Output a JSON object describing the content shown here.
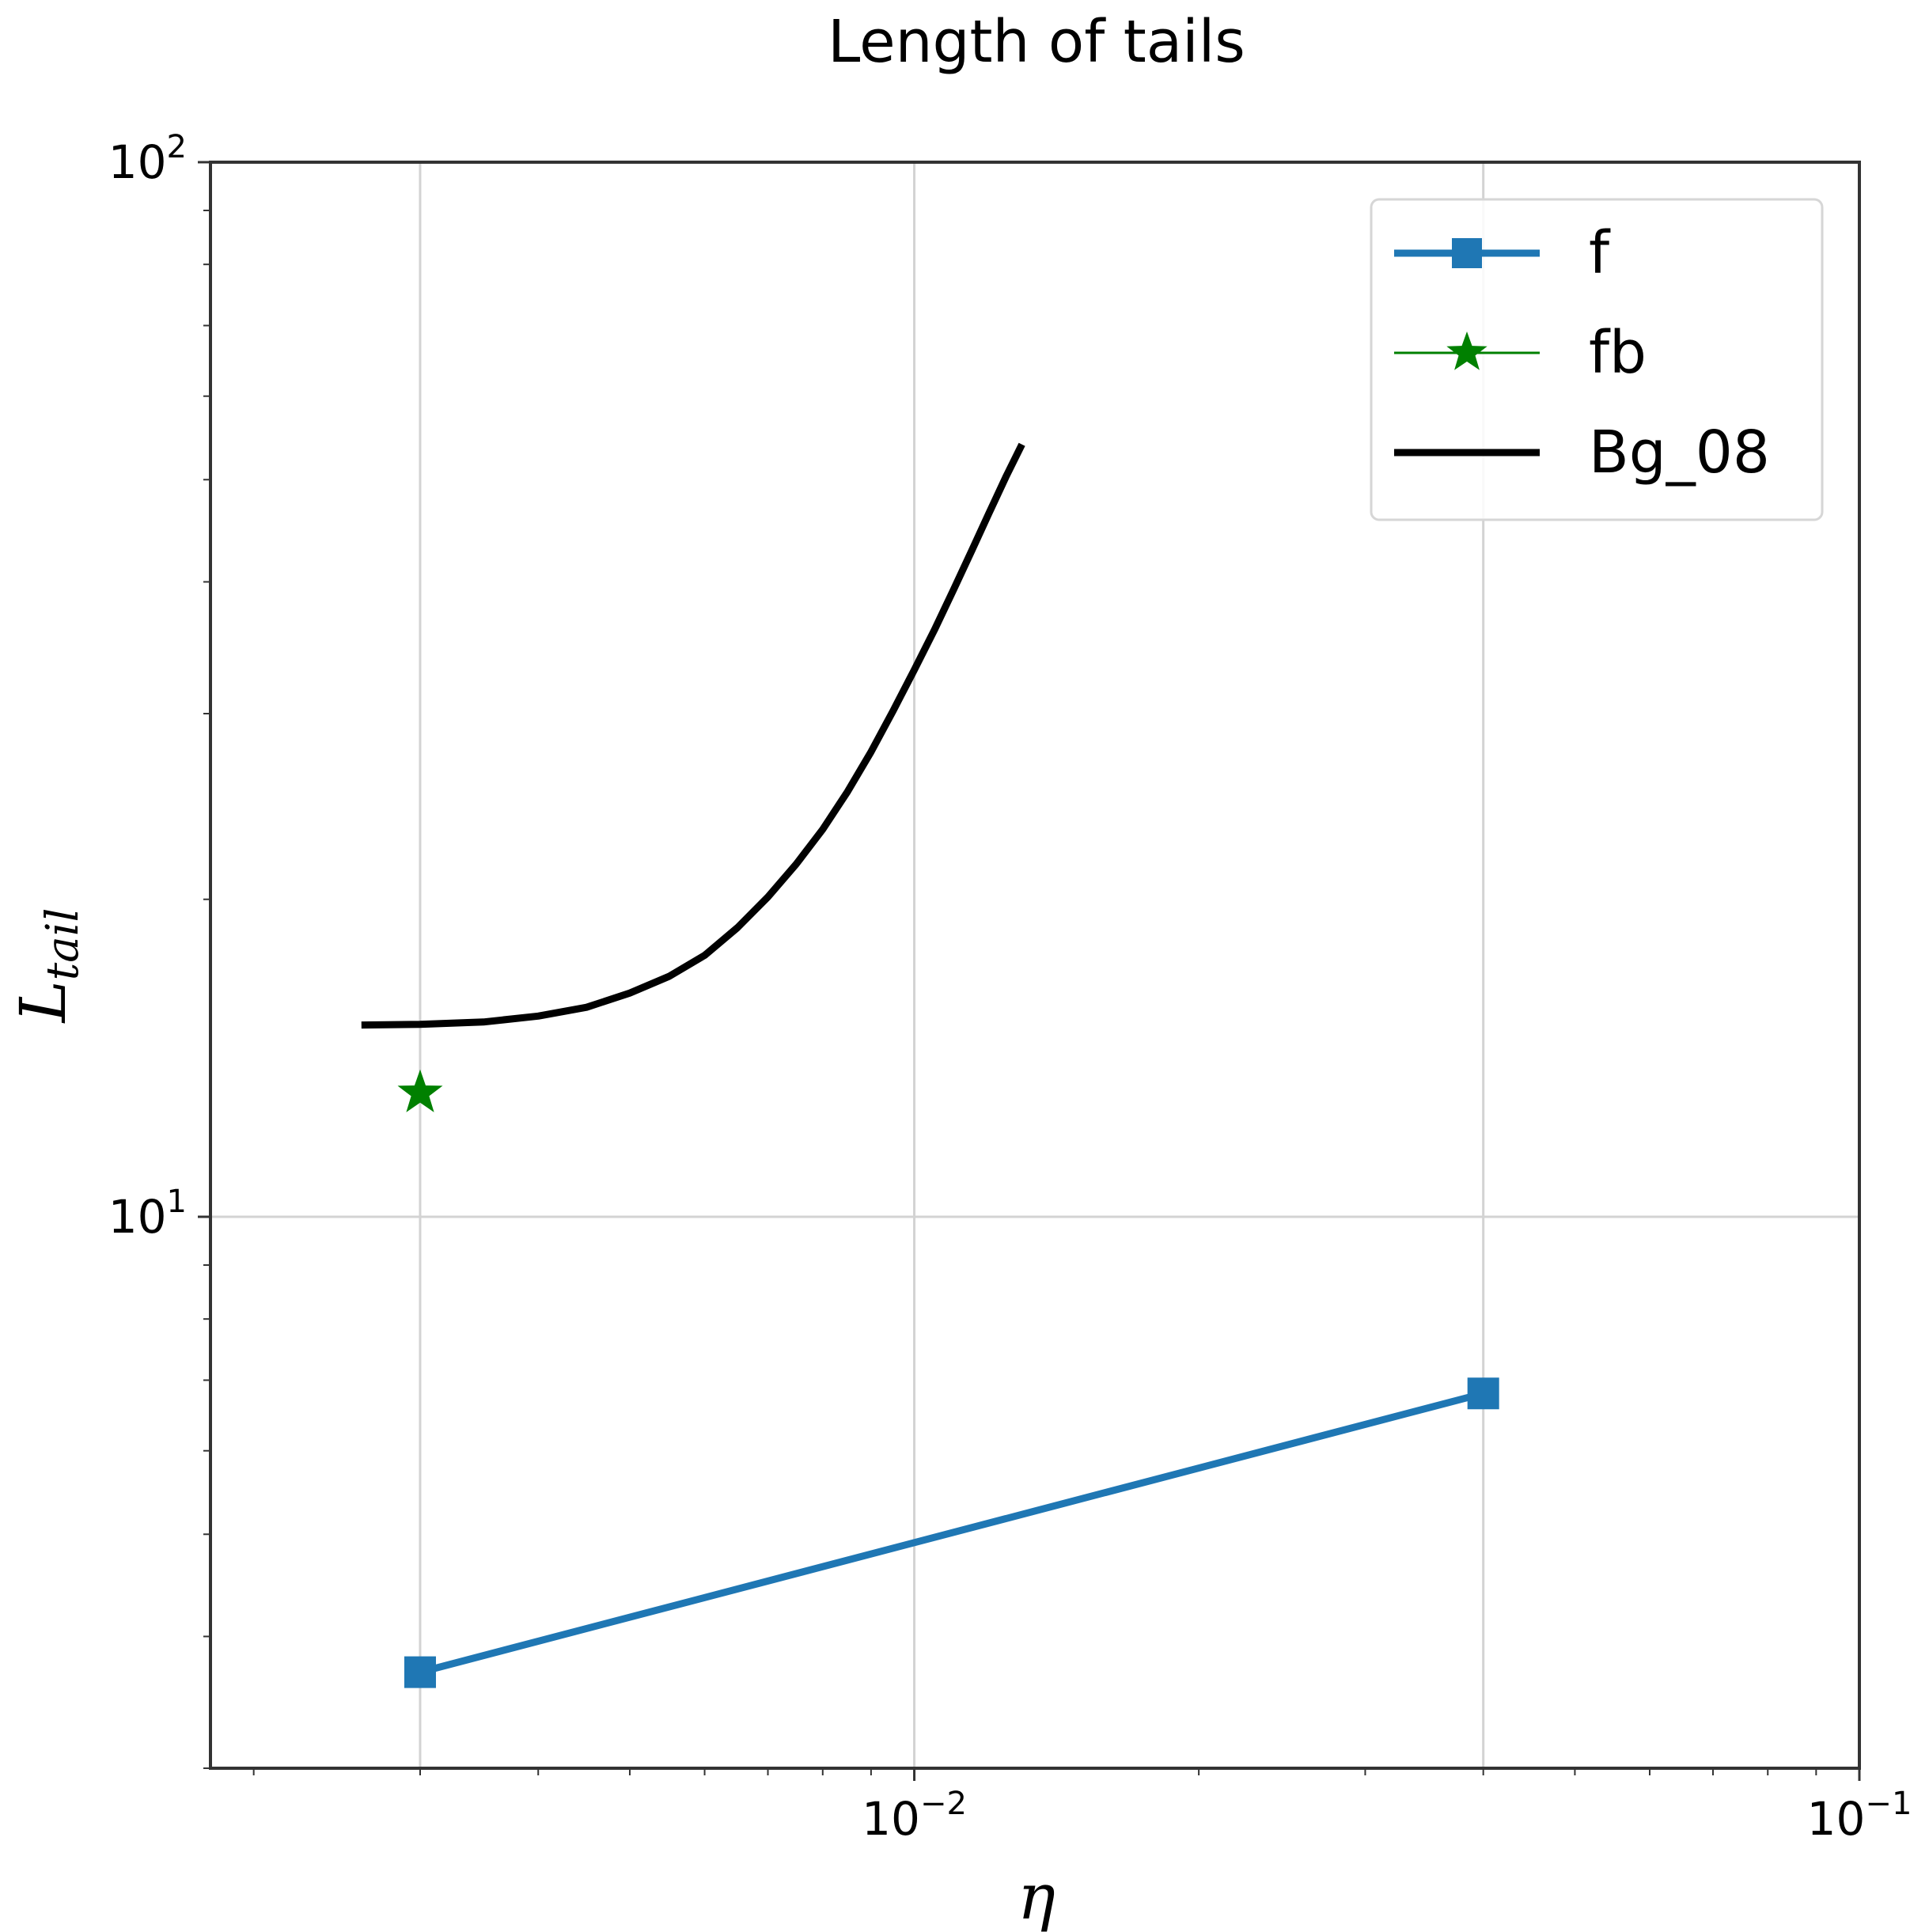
{
  "chart_data": {
    "type": "line",
    "title": "Length of tails",
    "xlabel": "η",
    "ylabel": "L",
    "ylabel_subscript": "tail",
    "xscale": "log",
    "yscale": "log",
    "xlim": [
      0.0018,
      0.1
    ],
    "ylim": [
      3.0,
      100
    ],
    "xticks": [
      {
        "value": 0.01,
        "base": "10",
        "exp": "−2"
      },
      {
        "value": 0.1,
        "base": "10",
        "exp": "−1"
      }
    ],
    "yticks": [
      {
        "value": 10,
        "base": "10",
        "exp": "1"
      },
      {
        "value": 100,
        "base": "10",
        "exp": "2"
      }
    ],
    "grid": true,
    "legend_position": "top-right",
    "series": [
      {
        "name": "f",
        "color": "#1f77b4",
        "marker": "square",
        "x": [
          0.003,
          0.04
        ],
        "y": [
          3.7,
          6.8
        ]
      },
      {
        "name": "fb",
        "color": "#008000",
        "marker": "star",
        "x": [
          0.003
        ],
        "y": [
          13.1
        ]
      },
      {
        "name": "Bg_08",
        "color": "#000000",
        "marker": "none",
        "x": [
          0.0026,
          0.003,
          0.0035,
          0.004,
          0.0045,
          0.005,
          0.0055,
          0.006,
          0.0065,
          0.007,
          0.0075,
          0.008,
          0.0085,
          0.009,
          0.0095,
          0.01,
          0.0105,
          0.011,
          0.0115,
          0.012,
          0.0125,
          0.013
        ],
        "y": [
          15.2,
          15.22,
          15.3,
          15.5,
          15.8,
          16.3,
          16.9,
          17.7,
          18.8,
          20.1,
          21.6,
          23.3,
          25.3,
          27.6,
          30.2,
          33.0,
          36.0,
          39.3,
          42.8,
          46.5,
          50.3,
          54.0
        ]
      }
    ]
  }
}
